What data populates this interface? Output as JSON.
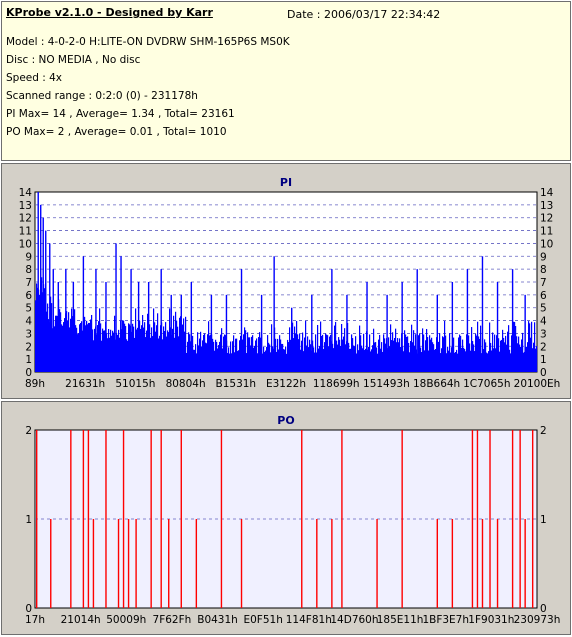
{
  "header": {
    "app_title": "KProbe v2.1.0 - Designed by Karr",
    "date": "Date : 2006/03/17 22:34:42",
    "model": "Model : 4-0-2-0 H:LITE-ON DVDRW SHM-165P6S MS0K",
    "disc": "Disc : NO MEDIA , No disc",
    "speed": "Speed : 4x",
    "scanned_range": "Scanned range : 0:2:0 (0) - 231178h",
    "pi_summary": "PI Max= 14 , Average= 1.34 , Total= 23161",
    "po_summary": "PO Max= 2 , Average= 0.01 , Total= 1010"
  },
  "colors": {
    "pi_bar": "#0000ff",
    "po_bar": "#ff0000",
    "plot_bg_pi": "#ffffff",
    "plot_bg_po": "#f0f0ff",
    "grid": "#6060c0",
    "title": "#000080"
  },
  "chart_data": [
    {
      "type": "bar",
      "title": "PI",
      "ylim": [
        0,
        14
      ],
      "yticks": [
        0,
        1,
        2,
        3,
        4,
        5,
        6,
        7,
        8,
        9,
        10,
        11,
        12,
        13,
        14
      ],
      "xtick_labels": [
        "89h",
        "21631h",
        "51015h",
        "80804h",
        "B1531h",
        "E3122h",
        "118699h",
        "151493h",
        "18B664h",
        "1C7065h",
        "20100Eh"
      ],
      "grid": true,
      "base_level_segments": [
        {
          "from": 0.0,
          "to": 0.02,
          "level": 7
        },
        {
          "from": 0.02,
          "to": 0.08,
          "level": 5
        },
        {
          "from": 0.08,
          "to": 0.3,
          "level": 4
        },
        {
          "from": 0.3,
          "to": 0.55,
          "level": 3
        },
        {
          "from": 0.55,
          "to": 1.0,
          "level": 3
        }
      ],
      "spikes": [
        {
          "pos": 0.005,
          "value": 14
        },
        {
          "pos": 0.01,
          "value": 13
        },
        {
          "pos": 0.015,
          "value": 12
        },
        {
          "pos": 0.02,
          "value": 11
        },
        {
          "pos": 0.028,
          "value": 10
        },
        {
          "pos": 0.035,
          "value": 8
        },
        {
          "pos": 0.045,
          "value": 7
        },
        {
          "pos": 0.06,
          "value": 8
        },
        {
          "pos": 0.075,
          "value": 7
        },
        {
          "pos": 0.095,
          "value": 9
        },
        {
          "pos": 0.12,
          "value": 8
        },
        {
          "pos": 0.14,
          "value": 7
        },
        {
          "pos": 0.16,
          "value": 10
        },
        {
          "pos": 0.17,
          "value": 9
        },
        {
          "pos": 0.19,
          "value": 8
        },
        {
          "pos": 0.205,
          "value": 7
        },
        {
          "pos": 0.225,
          "value": 7
        },
        {
          "pos": 0.25,
          "value": 8
        },
        {
          "pos": 0.27,
          "value": 6
        },
        {
          "pos": 0.29,
          "value": 6
        },
        {
          "pos": 0.31,
          "value": 7
        },
        {
          "pos": 0.35,
          "value": 6
        },
        {
          "pos": 0.38,
          "value": 6
        },
        {
          "pos": 0.41,
          "value": 8
        },
        {
          "pos": 0.45,
          "value": 6
        },
        {
          "pos": 0.475,
          "value": 9
        },
        {
          "pos": 0.51,
          "value": 5
        },
        {
          "pos": 0.55,
          "value": 6
        },
        {
          "pos": 0.59,
          "value": 8
        },
        {
          "pos": 0.62,
          "value": 6
        },
        {
          "pos": 0.66,
          "value": 7
        },
        {
          "pos": 0.7,
          "value": 6
        },
        {
          "pos": 0.73,
          "value": 7
        },
        {
          "pos": 0.76,
          "value": 8
        },
        {
          "pos": 0.8,
          "value": 6
        },
        {
          "pos": 0.83,
          "value": 7
        },
        {
          "pos": 0.86,
          "value": 8
        },
        {
          "pos": 0.89,
          "value": 9
        },
        {
          "pos": 0.92,
          "value": 7
        },
        {
          "pos": 0.95,
          "value": 8
        },
        {
          "pos": 0.975,
          "value": 6
        }
      ]
    },
    {
      "type": "bar",
      "title": "PO",
      "ylim": [
        0,
        2
      ],
      "yticks": [
        0,
        1,
        2
      ],
      "xtick_labels": [
        "17h",
        "21014h",
        "50009h",
        "7F62Fh",
        "B0431h",
        "E0F51h",
        "114F81h",
        "14D760h",
        "185E11h",
        "1BF3E7h",
        "1F9031h",
        "230973h"
      ],
      "grid": true,
      "spikes": [
        {
          "pos": 0.002,
          "value": 2
        },
        {
          "pos": 0.03,
          "value": 1
        },
        {
          "pos": 0.07,
          "value": 2
        },
        {
          "pos": 0.095,
          "value": 2
        },
        {
          "pos": 0.105,
          "value": 2
        },
        {
          "pos": 0.115,
          "value": 1
        },
        {
          "pos": 0.14,
          "value": 2
        },
        {
          "pos": 0.165,
          "value": 1
        },
        {
          "pos": 0.175,
          "value": 2
        },
        {
          "pos": 0.185,
          "value": 1
        },
        {
          "pos": 0.2,
          "value": 1
        },
        {
          "pos": 0.23,
          "value": 2
        },
        {
          "pos": 0.25,
          "value": 2
        },
        {
          "pos": 0.265,
          "value": 1
        },
        {
          "pos": 0.29,
          "value": 2
        },
        {
          "pos": 0.32,
          "value": 1
        },
        {
          "pos": 0.37,
          "value": 2
        },
        {
          "pos": 0.41,
          "value": 1
        },
        {
          "pos": 0.53,
          "value": 2
        },
        {
          "pos": 0.56,
          "value": 1
        },
        {
          "pos": 0.59,
          "value": 1
        },
        {
          "pos": 0.61,
          "value": 2
        },
        {
          "pos": 0.68,
          "value": 1
        },
        {
          "pos": 0.73,
          "value": 2
        },
        {
          "pos": 0.8,
          "value": 1
        },
        {
          "pos": 0.83,
          "value": 1
        },
        {
          "pos": 0.87,
          "value": 2
        },
        {
          "pos": 0.88,
          "value": 2
        },
        {
          "pos": 0.89,
          "value": 1
        },
        {
          "pos": 0.905,
          "value": 2
        },
        {
          "pos": 0.92,
          "value": 1
        },
        {
          "pos": 0.95,
          "value": 2
        },
        {
          "pos": 0.965,
          "value": 2
        },
        {
          "pos": 0.975,
          "value": 1
        },
        {
          "pos": 0.99,
          "value": 2
        }
      ]
    }
  ]
}
